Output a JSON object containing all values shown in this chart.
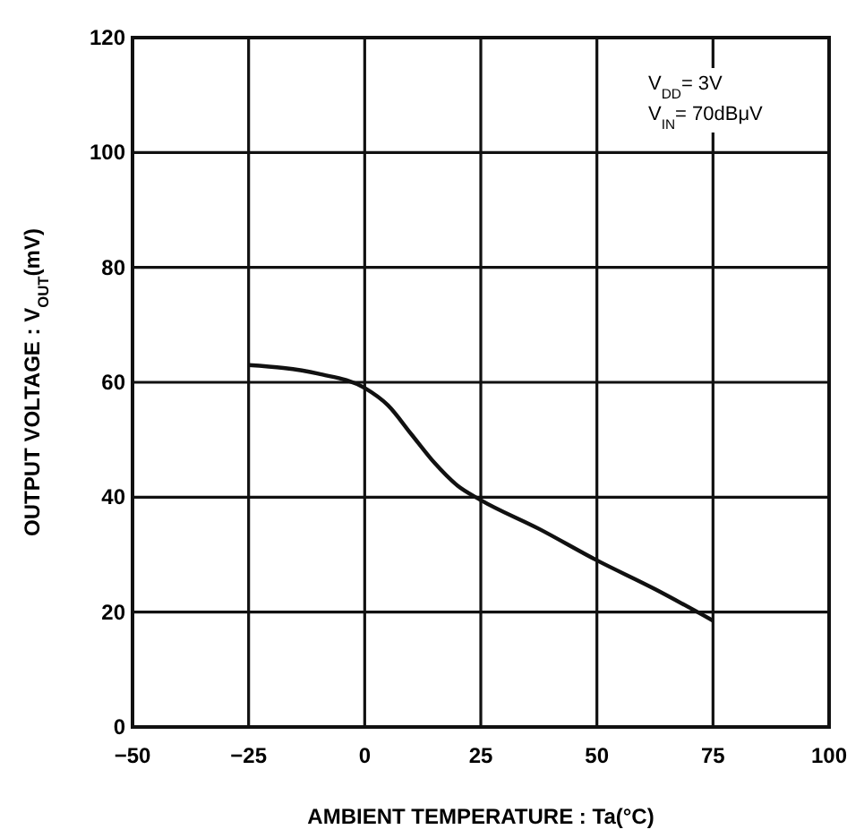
{
  "chart_data": {
    "type": "line",
    "xlabel": "AMBIENT TEMPERATURE : Ta(°C)",
    "ylabel": "OUTPUT VOLTAGE : V$_{OUT}$(mV)",
    "annotations": [
      "V$_{DD}$= 3V",
      "V$_{IN}$= 70dBμV"
    ],
    "series": [
      {
        "color": "#111111",
        "x": [
          -25,
          -10,
          0,
          5,
          10,
          15,
          20,
          25,
          37.5,
          50,
          62.5,
          75
        ],
        "values": [
          63,
          61.5,
          59,
          56,
          51,
          46,
          42,
          39.5,
          34.5,
          29,
          24,
          18.5
        ]
      }
    ],
    "xlim": [
      -50,
      100
    ],
    "xticks": [
      -50,
      -25,
      0,
      25,
      50,
      75,
      100
    ],
    "ylim": [
      0,
      120
    ],
    "yticks": [
      0,
      20,
      40,
      60,
      80,
      100,
      120
    ],
    "grid": true,
    "marker": "none",
    "line_style": "solid"
  }
}
